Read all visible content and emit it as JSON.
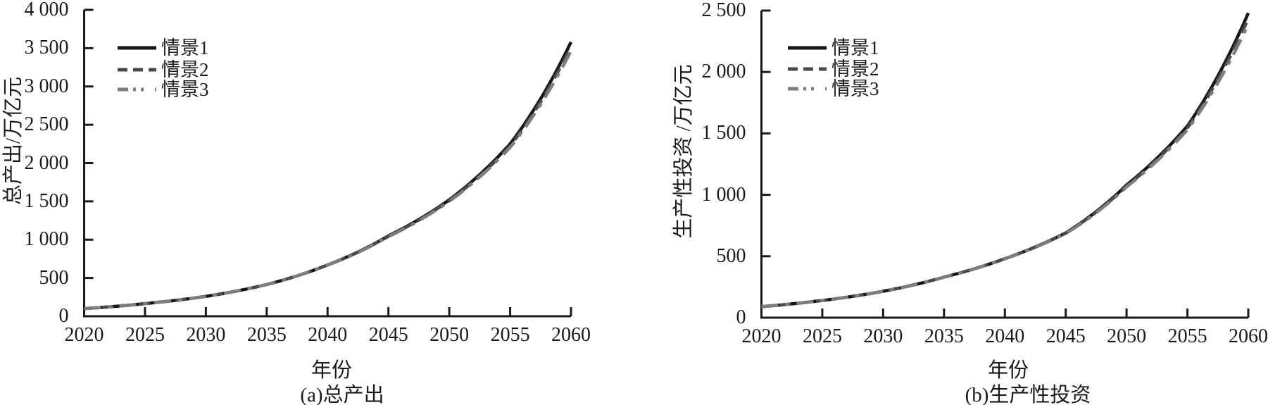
{
  "figure": {
    "background": "#ffffff",
    "text_color": "#1a1a1a",
    "axis_color": "#1a1a1a"
  },
  "chart_data": [
    {
      "type": "line",
      "panel": "a",
      "caption": "(a)总产出",
      "xlabel": "年份",
      "ylabel": "总产出/万亿元",
      "xlim": [
        2020,
        2060
      ],
      "ylim": [
        0,
        4000
      ],
      "grid": false,
      "legend_position": "upper-left-inside",
      "x_ticks": [
        2020,
        2025,
        2030,
        2035,
        2040,
        2045,
        2050,
        2055,
        2060
      ],
      "x_tick_labels": [
        "2020",
        "2025",
        "2030",
        "2035",
        "2040",
        "2045",
        "2050",
        "2055",
        "2060"
      ],
      "y_ticks": [
        0,
        500,
        1000,
        1500,
        2000,
        2500,
        3000,
        3500,
        4000
      ],
      "y_tick_labels": [
        "0",
        "500",
        "1 000",
        "1 500",
        "2 000",
        "2 500",
        "3 000",
        "3 500",
        "4 000"
      ],
      "x": [
        2020,
        2025,
        2030,
        2035,
        2040,
        2045,
        2050,
        2055,
        2060
      ],
      "series": [
        {
          "name": "情景1",
          "style": "solid",
          "color": "#161616",
          "values": [
            100,
            165,
            260,
            415,
            670,
            1050,
            1520,
            2250,
            3580
          ]
        },
        {
          "name": "情景2",
          "style": "dashed",
          "color": "#4a4a4a",
          "values": [
            100,
            165,
            260,
            415,
            670,
            1045,
            1510,
            2225,
            3520
          ]
        },
        {
          "name": "情景3",
          "style": "dashdot",
          "color": "#7d7d7d",
          "values": [
            100,
            165,
            260,
            415,
            668,
            1040,
            1500,
            2205,
            3465
          ]
        }
      ]
    },
    {
      "type": "line",
      "panel": "b",
      "caption": "(b)生产性投资",
      "xlabel": "年份",
      "ylabel": "生产性投资 /万亿元",
      "xlim": [
        2020,
        2060
      ],
      "ylim": [
        0,
        2500
      ],
      "grid": false,
      "legend_position": "upper-left-inside",
      "x_ticks": [
        2020,
        2025,
        2030,
        2035,
        2040,
        2045,
        2050,
        2055,
        2060
      ],
      "x_tick_labels": [
        "2020",
        "2025",
        "2030",
        "2035",
        "2040",
        "2045",
        "2050",
        "2055",
        "2060"
      ],
      "y_ticks": [
        0,
        500,
        1000,
        1500,
        2000,
        2500
      ],
      "y_tick_labels": [
        "0",
        "500",
        "1 000",
        "1 500",
        "2 000",
        "2 500"
      ],
      "x": [
        2020,
        2025,
        2030,
        2035,
        2040,
        2045,
        2050,
        2055,
        2060
      ],
      "series": [
        {
          "name": "情景1",
          "style": "solid",
          "color": "#161616",
          "values": [
            90,
            140,
            215,
            330,
            480,
            690,
            1080,
            1560,
            2480
          ]
        },
        {
          "name": "情景2",
          "style": "dashed",
          "color": "#4a4a4a",
          "values": [
            90,
            140,
            215,
            330,
            480,
            688,
            1072,
            1545,
            2435
          ]
        },
        {
          "name": "情景3",
          "style": "dashdot",
          "color": "#7d7d7d",
          "values": [
            90,
            140,
            215,
            330,
            479,
            685,
            1065,
            1530,
            2390
          ]
        }
      ]
    }
  ]
}
